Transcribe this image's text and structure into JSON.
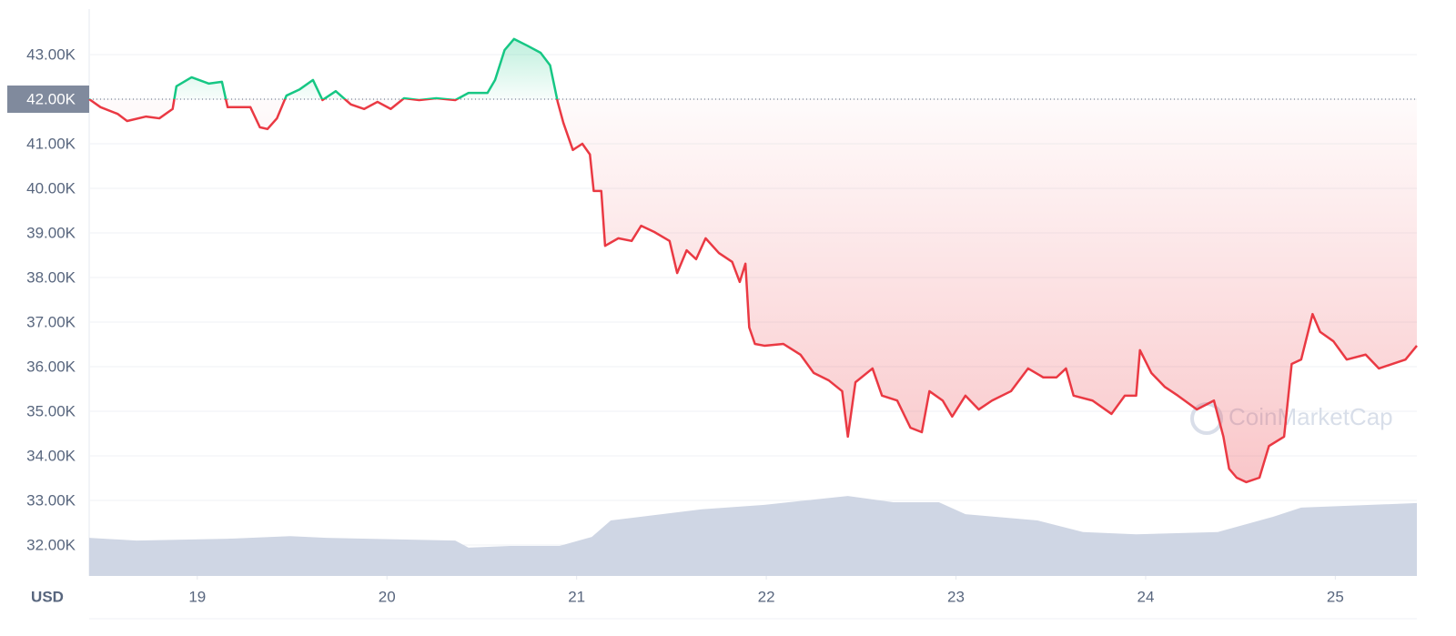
{
  "chart_data": {
    "type": "line",
    "x": [
      18.43,
      18.49,
      18.58,
      18.63,
      18.73,
      18.8,
      18.87,
      18.89,
      18.97,
      19.06,
      19.13,
      19.16,
      19.28,
      19.33,
      19.37,
      19.42,
      19.47,
      19.54,
      19.61,
      19.66,
      19.73,
      19.81,
      19.88,
      19.95,
      20.02,
      20.09,
      20.17,
      20.26,
      20.36,
      20.43,
      20.53,
      20.57,
      20.62,
      20.67,
      20.74,
      20.81,
      20.86,
      20.9,
      20.93,
      20.98,
      21.03,
      21.07,
      21.09,
      21.13,
      21.15,
      21.22,
      21.29,
      21.34,
      21.41,
      21.49,
      21.53,
      21.58,
      21.63,
      21.68,
      21.75,
      21.82,
      21.86,
      21.89,
      21.91,
      21.94,
      21.99,
      22.09,
      22.18,
      22.25,
      22.33,
      22.4,
      22.43,
      22.47,
      22.56,
      22.61,
      22.69,
      22.76,
      22.82,
      22.86,
      22.93,
      22.98,
      23.05,
      23.12,
      23.19,
      23.29,
      23.38,
      23.46,
      23.53,
      23.58,
      23.62,
      23.72,
      23.82,
      23.89,
      23.95,
      23.97,
      24.03,
      24.1,
      24.17,
      24.27,
      24.36,
      24.41,
      24.44,
      24.48,
      24.53,
      24.6,
      24.65,
      24.73,
      24.77,
      24.82,
      24.88,
      24.92,
      24.99,
      25.06,
      25.16,
      25.23,
      25.3,
      25.37,
      25.43
    ],
    "values": [
      42000,
      41820,
      41670,
      41510,
      41610,
      41570,
      41780,
      42290,
      42490,
      42350,
      42390,
      41820,
      41820,
      41370,
      41330,
      41570,
      42080,
      42220,
      42430,
      41980,
      42180,
      41880,
      41780,
      41940,
      41780,
      42020,
      41980,
      42020,
      41980,
      42140,
      42140,
      42430,
      43100,
      43350,
      43200,
      43040,
      42760,
      41940,
      41470,
      40860,
      41000,
      40760,
      39940,
      39940,
      38710,
      38880,
      38820,
      39160,
      39020,
      38820,
      38100,
      38610,
      38410,
      38880,
      38550,
      38350,
      37900,
      38310,
      36880,
      36510,
      36470,
      36510,
      36270,
      35860,
      35690,
      35450,
      34430,
      35650,
      35960,
      35350,
      35240,
      34630,
      34530,
      35450,
      35240,
      34880,
      35350,
      35040,
      35240,
      35450,
      35960,
      35760,
      35760,
      35960,
      35350,
      35240,
      34940,
      35350,
      35350,
      36370,
      35860,
      35550,
      35350,
      35040,
      35240,
      34430,
      33710,
      33510,
      33410,
      33510,
      34220,
      34430,
      36060,
      36160,
      37180,
      36780,
      36570,
      36160,
      36270,
      35960,
      36060,
      36160,
      36470
    ],
    "baseline": 42000,
    "up_color": "#16c784",
    "down_color": "#ea3943",
    "volume": {
      "x": [
        18.43,
        18.68,
        19.16,
        19.49,
        19.68,
        20.36,
        20.43,
        20.65,
        20.91,
        21.08,
        21.18,
        21.66,
        21.99,
        22.43,
        22.67,
        22.91,
        23.05,
        23.43,
        23.67,
        23.95,
        24.38,
        24.67,
        24.82,
        25.43
      ],
      "values": [
        32160,
        32100,
        32140,
        32200,
        32160,
        32100,
        31940,
        31980,
        31980,
        32180,
        32550,
        32800,
        32900,
        33100,
        32960,
        32960,
        32690,
        32550,
        32290,
        32240,
        32290,
        32630,
        32840,
        32940
      ],
      "color": "#cfd6e4"
    },
    "xlim": [
      18.43,
      25.43
    ],
    "xticks": [
      19,
      20,
      21,
      22,
      23,
      24,
      25
    ],
    "ylim": [
      31306,
      44020
    ],
    "yticks": [
      {
        "value": 32000,
        "label": "32.00K"
      },
      {
        "value": 33000,
        "label": "33.00K"
      },
      {
        "value": 34000,
        "label": "34.00K"
      },
      {
        "value": 35000,
        "label": "35.00K"
      },
      {
        "value": 36000,
        "label": "36.00K"
      },
      {
        "value": 37000,
        "label": "37.00K"
      },
      {
        "value": 38000,
        "label": "38.00K"
      },
      {
        "value": 39000,
        "label": "39.00K"
      },
      {
        "value": 40000,
        "label": "40.00K"
      },
      {
        "value": 41000,
        "label": "41.00K"
      },
      {
        "value": 42000,
        "label": "42.00K"
      },
      {
        "value": 43000,
        "label": "43.00K"
      }
    ],
    "currency_label": "USD",
    "watermark": "CoinMarketCap",
    "grid": true
  }
}
